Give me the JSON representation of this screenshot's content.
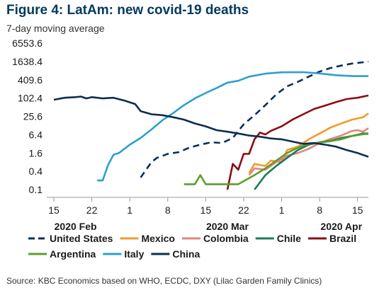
{
  "chart_data": {
    "type": "line",
    "title": "Figure 4: LatAm: new covid-19 deaths",
    "subtitle": "7-day moving average",
    "source": "Source: KBC Economics based on WHO, ECDC, DXY (Lilac Garden Family Clinics)",
    "y_scale": "log",
    "y_ticks": [
      "6553.6",
      "1638.4",
      "409.6",
      "102.4",
      "25.6",
      "6.4",
      "1.6",
      "0.4",
      "0.1"
    ],
    "y_tick_values": [
      6553.6,
      1638.4,
      409.6,
      102.4,
      25.6,
      6.4,
      1.6,
      0.4,
      0.1
    ],
    "ylim": [
      0.1,
      6553.6
    ],
    "x_ticks": [
      {
        "label": "15",
        "date": "2020-02-15"
      },
      {
        "label": "22",
        "date": "2020-02-22"
      },
      {
        "label": "1",
        "date": "2020-02-29"
      },
      {
        "label": "8",
        "date": "2020-03-07"
      },
      {
        "label": "15",
        "date": "2020-03-14"
      },
      {
        "label": "22",
        "date": "2020-03-21"
      },
      {
        "label": "1",
        "date": "2020-03-28"
      },
      {
        "label": "8",
        "date": "2020-04-04"
      },
      {
        "label": "15",
        "date": "2020-04-11"
      }
    ],
    "x_groups": [
      {
        "label": "2020 Feb",
        "date": "2020-02-19"
      },
      {
        "label": "2020 Mar",
        "date": "2020-03-18"
      },
      {
        "label": "2020 Apr",
        "date": "2020-04-08"
      }
    ],
    "xlim": [
      "2020-02-15",
      "2020-04-13"
    ],
    "grid": false,
    "legend_position": "bottom",
    "series": [
      {
        "name": "United States",
        "color": "#0b2f5b",
        "dash": true,
        "points": [
          [
            "2020-03-02",
            0.25
          ],
          [
            "2020-03-04",
            0.8
          ],
          [
            "2020-03-05",
            1.1
          ],
          [
            "2020-03-07",
            1.5
          ],
          [
            "2020-03-09",
            1.7
          ],
          [
            "2020-03-11",
            2.4
          ],
          [
            "2020-03-13",
            3.0
          ],
          [
            "2020-03-15",
            3.6
          ],
          [
            "2020-03-17",
            3.4
          ],
          [
            "2020-03-19",
            5.0
          ],
          [
            "2020-03-21",
            14
          ],
          [
            "2020-03-23",
            28
          ],
          [
            "2020-03-25",
            60
          ],
          [
            "2020-03-27",
            135
          ],
          [
            "2020-03-29",
            250
          ],
          [
            "2020-03-31",
            350
          ],
          [
            "2020-04-02",
            520
          ],
          [
            "2020-04-04",
            760
          ],
          [
            "2020-04-06",
            1000
          ],
          [
            "2020-04-08",
            1200
          ],
          [
            "2020-04-10",
            1400
          ],
          [
            "2020-04-12",
            1540
          ],
          [
            "2020-04-13",
            1600
          ]
        ]
      },
      {
        "name": "Mexico",
        "color": "#f29a2e",
        "dash": false,
        "points": [
          [
            "2020-03-22",
            0.35
          ],
          [
            "2020-03-23",
            0.7
          ],
          [
            "2020-03-25",
            0.6
          ],
          [
            "2020-03-26",
            0.9
          ],
          [
            "2020-03-28",
            0.8
          ],
          [
            "2020-03-29",
            2.0
          ],
          [
            "2020-03-31",
            2.6
          ],
          [
            "2020-04-02",
            4.5
          ],
          [
            "2020-04-04",
            7.0
          ],
          [
            "2020-04-06",
            11
          ],
          [
            "2020-04-08",
            15
          ],
          [
            "2020-04-10",
            20
          ],
          [
            "2020-04-12",
            24
          ],
          [
            "2020-04-13",
            32
          ]
        ]
      },
      {
        "name": "Colombia",
        "color": "#e0847e",
        "dash": false,
        "points": [
          [
            "2020-03-22",
            0.3
          ],
          [
            "2020-03-23",
            0.5
          ],
          [
            "2020-03-25",
            0.45
          ],
          [
            "2020-03-27",
            0.8
          ],
          [
            "2020-03-29",
            1.3
          ],
          [
            "2020-03-31",
            1.6
          ],
          [
            "2020-04-02",
            2.2
          ],
          [
            "2020-04-04",
            3.4
          ],
          [
            "2020-04-06",
            4.6
          ],
          [
            "2020-04-08",
            6.0
          ],
          [
            "2020-04-10",
            8.5
          ],
          [
            "2020-04-11",
            9.0
          ],
          [
            "2020-04-12",
            8.0
          ],
          [
            "2020-04-13",
            10.5
          ]
        ]
      },
      {
        "name": "Chile",
        "color": "#1e7a5a",
        "dash": false,
        "points": [
          [
            "2020-03-23",
            0.1
          ],
          [
            "2020-03-25",
            0.3
          ],
          [
            "2020-03-27",
            0.6
          ],
          [
            "2020-03-29",
            1.1
          ],
          [
            "2020-03-31",
            2.0
          ],
          [
            "2020-04-02",
            3.0
          ],
          [
            "2020-04-04",
            3.6
          ],
          [
            "2020-04-06",
            4.0
          ],
          [
            "2020-04-08",
            5.0
          ],
          [
            "2020-04-10",
            5.8
          ],
          [
            "2020-04-12",
            7.0
          ],
          [
            "2020-04-13",
            7.0
          ]
        ]
      },
      {
        "name": "Brazil",
        "color": "#8b0d14",
        "dash": false,
        "points": [
          [
            "2020-03-18",
            0.1
          ],
          [
            "2020-03-19",
            0.7
          ],
          [
            "2020-03-20",
            0.45
          ],
          [
            "2020-03-21",
            1.5
          ],
          [
            "2020-03-22",
            1.5
          ],
          [
            "2020-03-23",
            4.5
          ],
          [
            "2020-03-24",
            7.5
          ],
          [
            "2020-03-25",
            6.5
          ],
          [
            "2020-03-26",
            8.5
          ],
          [
            "2020-03-28",
            12
          ],
          [
            "2020-03-30",
            20
          ],
          [
            "2020-04-01",
            30
          ],
          [
            "2020-04-03",
            45
          ],
          [
            "2020-04-05",
            58
          ],
          [
            "2020-04-07",
            75
          ],
          [
            "2020-04-09",
            95
          ],
          [
            "2020-04-11",
            105
          ],
          [
            "2020-04-13",
            125
          ]
        ]
      },
      {
        "name": "Argentina",
        "color": "#5c9e2c",
        "dash": false,
        "points": [
          [
            "2020-03-10",
            0.15
          ],
          [
            "2020-03-12",
            0.15
          ],
          [
            "2020-03-13",
            0.3
          ],
          [
            "2020-03-14",
            0.15
          ],
          [
            "2020-03-18",
            0.15
          ],
          [
            "2020-03-20",
            0.15
          ],
          [
            "2020-03-23",
            0.3
          ],
          [
            "2020-03-25",
            0.5
          ],
          [
            "2020-03-27",
            0.9
          ],
          [
            "2020-03-29",
            1.6
          ],
          [
            "2020-03-31",
            2.4
          ],
          [
            "2020-04-02",
            3.2
          ],
          [
            "2020-04-04",
            3.5
          ],
          [
            "2020-04-06",
            3.9
          ],
          [
            "2020-04-08",
            4.5
          ],
          [
            "2020-04-10",
            5.8
          ],
          [
            "2020-04-12",
            6.6
          ],
          [
            "2020-04-13",
            6.8
          ]
        ]
      },
      {
        "name": "Italy",
        "color": "#2e9fd0",
        "dash": false,
        "points": [
          [
            "2020-02-23",
            0.2
          ],
          [
            "2020-02-24",
            0.2
          ],
          [
            "2020-02-25",
            0.65
          ],
          [
            "2020-02-26",
            1.4
          ],
          [
            "2020-02-27",
            1.6
          ],
          [
            "2020-02-29",
            3.0
          ],
          [
            "2020-03-02",
            5.0
          ],
          [
            "2020-03-04",
            9.5
          ],
          [
            "2020-03-06",
            19
          ],
          [
            "2020-03-08",
            33
          ],
          [
            "2020-03-10",
            60
          ],
          [
            "2020-03-12",
            100
          ],
          [
            "2020-03-14",
            150
          ],
          [
            "2020-03-16",
            220
          ],
          [
            "2020-03-18",
            330
          ],
          [
            "2020-03-20",
            380
          ],
          [
            "2020-03-22",
            520
          ],
          [
            "2020-03-25",
            650
          ],
          [
            "2020-03-28",
            720
          ],
          [
            "2020-04-01",
            730
          ],
          [
            "2020-04-04",
            660
          ],
          [
            "2020-04-07",
            580
          ],
          [
            "2020-04-10",
            540
          ],
          [
            "2020-04-13",
            540
          ]
        ]
      },
      {
        "name": "China",
        "color": "#0e2d4f",
        "dash": false,
        "points": [
          [
            "2020-02-15",
            90
          ],
          [
            "2020-02-17",
            105
          ],
          [
            "2020-02-19",
            110
          ],
          [
            "2020-02-20",
            115
          ],
          [
            "2020-02-21",
            100
          ],
          [
            "2020-02-22",
            110
          ],
          [
            "2020-02-24",
            100
          ],
          [
            "2020-02-26",
            105
          ],
          [
            "2020-02-28",
            85
          ],
          [
            "2020-03-01",
            65
          ],
          [
            "2020-03-02",
            38
          ],
          [
            "2020-03-04",
            30
          ],
          [
            "2020-03-06",
            28
          ],
          [
            "2020-03-08",
            24
          ],
          [
            "2020-03-10",
            20
          ],
          [
            "2020-03-12",
            15
          ],
          [
            "2020-03-14",
            12
          ],
          [
            "2020-03-16",
            9
          ],
          [
            "2020-03-18",
            8
          ],
          [
            "2020-03-20",
            7
          ],
          [
            "2020-03-22",
            6
          ],
          [
            "2020-03-24",
            5.5
          ],
          [
            "2020-03-26",
            4.8
          ],
          [
            "2020-03-28",
            4.5
          ],
          [
            "2020-03-30",
            3.8
          ],
          [
            "2020-04-01",
            3.2
          ],
          [
            "2020-04-03",
            3.4
          ],
          [
            "2020-04-05",
            3.0
          ],
          [
            "2020-04-07",
            2.6
          ],
          [
            "2020-04-09",
            2.0
          ],
          [
            "2020-04-11",
            1.6
          ],
          [
            "2020-04-13",
            1.2
          ]
        ]
      }
    ]
  }
}
